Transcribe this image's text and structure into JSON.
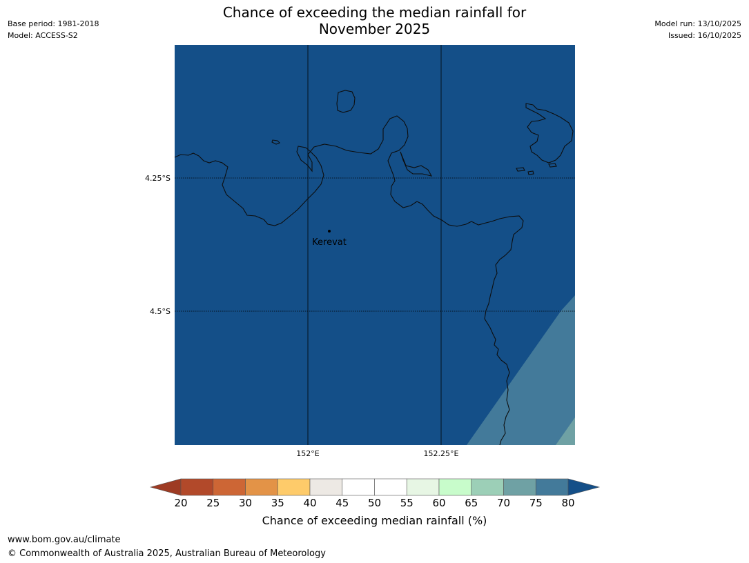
{
  "title_line1": "Chance of exceeding the median rainfall for",
  "title_line2": "November 2025",
  "meta_left": {
    "base_period": "Base period: 1981-2018",
    "model": "Model: ACCESS-S2"
  },
  "meta_right": {
    "model_run": "Model run: 13/10/2025",
    "issued": "Issued: 16/10/2025"
  },
  "map": {
    "lat_labels": [
      "4.25°S",
      "4.5°S"
    ],
    "lon_labels": [
      "152°E",
      "152.25°E"
    ],
    "place": "Kerevat",
    "ocean_color": "#144f88",
    "coast_color": "#0d0d0d"
  },
  "colorbar": {
    "ticks": [
      "20",
      "25",
      "30",
      "35",
      "40",
      "45",
      "50",
      "55",
      "60",
      "65",
      "70",
      "75",
      "80"
    ],
    "colors": [
      "#9e3b23",
      "#b2492a",
      "#cd6635",
      "#e39347",
      "#fecb6a",
      "#ede9e4",
      "#ffffff",
      "#ffffff",
      "#e7f6e4",
      "#c8fccb",
      "#9ccfb7",
      "#6fa1a4",
      "#437a9a",
      "#144f88"
    ],
    "label": "Chance of exceeding median rainfall (%)"
  },
  "footer": {
    "url": "www.bom.gov.au/climate",
    "copyright": "© Commonwealth of Australia 2025, Australian Bureau of Meteorology"
  }
}
